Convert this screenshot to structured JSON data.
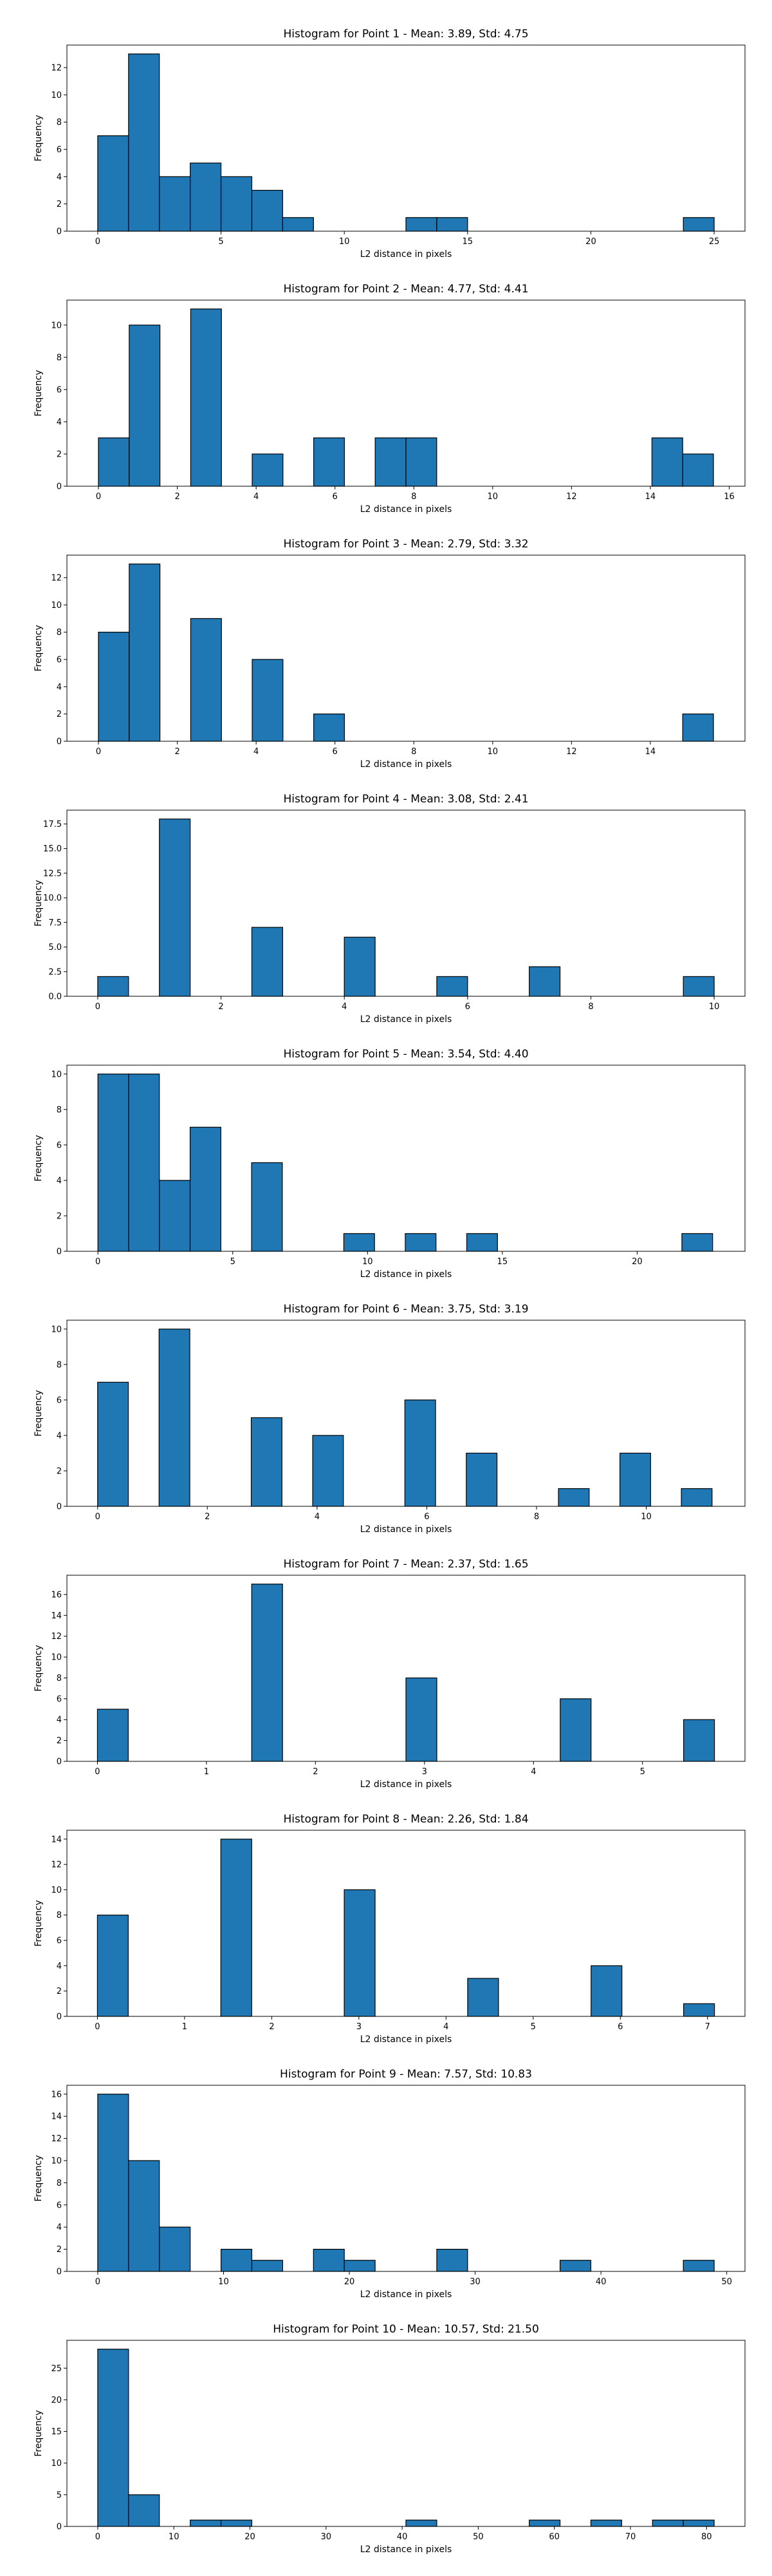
{
  "style": {
    "bar_color": "#1f77b4",
    "edge_color": "#000000"
  },
  "chart_data": [
    {
      "type": "bar",
      "title": "Histogram for Point 1 - Mean: 3.89, Std: 4.75",
      "xlabel": "L2 distance in pixels",
      "ylabel": "Frequency",
      "bins": {
        "start": 0.0,
        "width": 1.25
      },
      "values": [
        7,
        13,
        4,
        5,
        4,
        3,
        1,
        0,
        0,
        0,
        1,
        1,
        0,
        0,
        0,
        0,
        0,
        0,
        0,
        1
      ],
      "xlim": [
        -1.25,
        26.25
      ],
      "ylim": [
        0,
        13.65
      ],
      "xticks": [
        0,
        5,
        10,
        15,
        20,
        25
      ],
      "yticks": [
        0,
        2,
        4,
        6,
        8,
        10,
        12
      ],
      "grid": false,
      "legend": "none"
    },
    {
      "type": "bar",
      "title": "Histogram for Point 2 - Mean: 4.77, Std: 4.41",
      "xlabel": "L2 distance in pixels",
      "ylabel": "Frequency",
      "bins": {
        "start": 0.0,
        "width": 0.78
      },
      "values": [
        3,
        10,
        0,
        11,
        0,
        2,
        0,
        3,
        0,
        3,
        3,
        0,
        0,
        0,
        0,
        0,
        0,
        0,
        3,
        2
      ],
      "xlim": [
        -0.8,
        16.4
      ],
      "ylim": [
        0,
        11.55
      ],
      "xticks": [
        0,
        2,
        4,
        6,
        8,
        10,
        12,
        14,
        16
      ],
      "yticks": [
        0,
        2,
        4,
        6,
        8,
        10
      ],
      "grid": false,
      "legend": "none"
    },
    {
      "type": "bar",
      "title": "Histogram for Point 3 - Mean: 2.79, Std: 3.32",
      "xlabel": "L2 distance in pixels",
      "ylabel": "Frequency",
      "bins": {
        "start": 0.0,
        "width": 0.78
      },
      "values": [
        8,
        13,
        0,
        9,
        0,
        6,
        0,
        2,
        0,
        0,
        0,
        0,
        0,
        0,
        0,
        0,
        0,
        0,
        0,
        2
      ],
      "xlim": [
        -0.8,
        16.4
      ],
      "ylim": [
        0,
        13.65
      ],
      "xticks": [
        0,
        2,
        4,
        6,
        8,
        10,
        12,
        14
      ],
      "yticks": [
        0,
        2,
        4,
        6,
        8,
        10,
        12
      ],
      "grid": false,
      "legend": "none"
    },
    {
      "type": "bar",
      "title": "Histogram for Point 4 - Mean: 3.08, Std: 2.41",
      "xlabel": "L2 distance in pixels",
      "ylabel": "Frequency",
      "bins": {
        "start": 0.0,
        "width": 0.5
      },
      "values": [
        2,
        0,
        18,
        0,
        0,
        7,
        0,
        0,
        6,
        0,
        0,
        2,
        0,
        0,
        3,
        0,
        0,
        0,
        0,
        2
      ],
      "xlim": [
        -0.5,
        10.5
      ],
      "ylim": [
        0,
        18.9
      ],
      "xticks": [
        0,
        2,
        4,
        6,
        8,
        10
      ],
      "yticks": [
        "0.0",
        "2.5",
        "5.0",
        "7.5",
        "10.0",
        "12.5",
        "15.0",
        "17.5"
      ],
      "grid": false,
      "legend": "none"
    },
    {
      "type": "bar",
      "title": "Histogram for Point 5 - Mean: 3.54, Std: 4.40",
      "xlabel": "L2 distance in pixels",
      "ylabel": "Frequency",
      "bins": {
        "start": 0.0,
        "width": 1.14
      },
      "values": [
        10,
        10,
        4,
        7,
        0,
        5,
        0,
        0,
        1,
        0,
        1,
        0,
        1,
        0,
        0,
        0,
        0,
        0,
        0,
        1
      ],
      "xlim": [
        -1.15,
        24.0
      ],
      "ylim": [
        0,
        10.5
      ],
      "xticks": [
        0,
        5,
        10,
        15,
        20
      ],
      "yticks": [
        0,
        2,
        4,
        6,
        8,
        10
      ],
      "grid": false,
      "legend": "none"
    },
    {
      "type": "bar",
      "title": "Histogram for Point 6 - Mean: 3.75, Std: 3.19",
      "xlabel": "L2 distance in pixels",
      "ylabel": "Frequency",
      "bins": {
        "start": 0.0,
        "width": 0.56
      },
      "values": [
        7,
        0,
        10,
        0,
        0,
        5,
        0,
        4,
        0,
        0,
        6,
        0,
        3,
        0,
        0,
        1,
        0,
        3,
        0,
        1
      ],
      "xlim": [
        -0.56,
        11.8
      ],
      "ylim": [
        0,
        10.5
      ],
      "xticks": [
        0,
        2,
        4,
        6,
        8,
        10
      ],
      "yticks": [
        0,
        2,
        4,
        6,
        8,
        10
      ],
      "grid": false,
      "legend": "none"
    },
    {
      "type": "bar",
      "title": "Histogram for Point 7 - Mean: 2.37, Std: 1.65",
      "xlabel": "L2 distance in pixels",
      "ylabel": "Frequency",
      "bins": {
        "start": 0.0,
        "width": 0.283
      },
      "values": [
        5,
        0,
        0,
        0,
        0,
        17,
        0,
        0,
        0,
        0,
        8,
        0,
        0,
        0,
        0,
        6,
        0,
        0,
        0,
        4
      ],
      "xlim": [
        -0.28,
        5.94
      ],
      "ylim": [
        0,
        17.85
      ],
      "xticks": [
        0,
        1,
        2,
        3,
        4,
        5
      ],
      "yticks": [
        0,
        2,
        4,
        6,
        8,
        10,
        12,
        14,
        16
      ],
      "grid": false,
      "legend": "none"
    },
    {
      "type": "bar",
      "title": "Histogram for Point 8 - Mean: 2.26, Std: 1.84",
      "xlabel": "L2 distance in pixels",
      "ylabel": "Frequency",
      "bins": {
        "start": 0.0,
        "width": 0.354
      },
      "values": [
        8,
        0,
        0,
        0,
        14,
        0,
        0,
        0,
        10,
        0,
        0,
        0,
        3,
        0,
        0,
        0,
        4,
        0,
        0,
        1
      ],
      "xlim": [
        -0.35,
        7.43
      ],
      "ylim": [
        0,
        14.7
      ],
      "xticks": [
        0,
        1,
        2,
        3,
        4,
        5,
        6,
        7
      ],
      "yticks": [
        0,
        2,
        4,
        6,
        8,
        10,
        12,
        14
      ],
      "grid": false,
      "legend": "none"
    },
    {
      "type": "bar",
      "title": "Histogram for Point 9 - Mean: 7.57, Std: 10.83",
      "xlabel": "L2 distance in pixels",
      "ylabel": "Frequency",
      "bins": {
        "start": 0.0,
        "width": 2.45
      },
      "values": [
        16,
        10,
        4,
        0,
        2,
        1,
        0,
        2,
        1,
        0,
        0,
        2,
        0,
        0,
        0,
        1,
        0,
        0,
        0,
        1
      ],
      "xlim": [
        -2.45,
        51.45
      ],
      "ylim": [
        0,
        16.8
      ],
      "xticks": [
        0,
        10,
        20,
        30,
        40,
        50
      ],
      "yticks": [
        0,
        2,
        4,
        6,
        8,
        10,
        12,
        14,
        16
      ],
      "grid": false,
      "legend": "none"
    },
    {
      "type": "bar",
      "title": "Histogram for Point 10 - Mean: 10.57, Std: 21.50",
      "xlabel": "L2 distance in pixels",
      "ylabel": "Frequency",
      "bins": {
        "start": 0.0,
        "width": 4.05
      },
      "values": [
        28,
        5,
        0,
        1,
        1,
        0,
        0,
        0,
        0,
        0,
        1,
        0,
        0,
        0,
        1,
        0,
        1,
        0,
        1,
        1
      ],
      "xlim": [
        -4.05,
        85.05
      ],
      "ylim": [
        0,
        29.4
      ],
      "xticks": [
        0,
        10,
        20,
        30,
        40,
        50,
        60,
        70,
        80
      ],
      "yticks": [
        0,
        5,
        10,
        15,
        20,
        25
      ],
      "grid": false,
      "legend": "none"
    }
  ]
}
